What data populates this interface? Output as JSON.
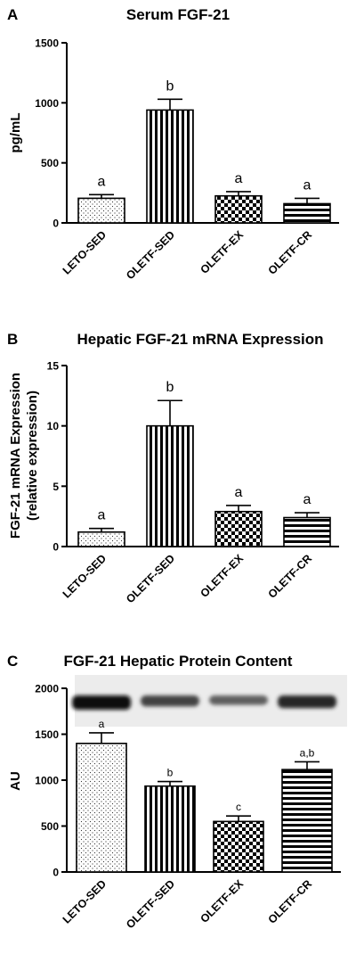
{
  "chart_data": [
    {
      "panel": "A",
      "type": "bar",
      "title": "Serum FGF-21",
      "xlabel": "",
      "ylabel": "pg/mL",
      "ylim": [
        0,
        1500
      ],
      "yticks": [
        0,
        500,
        1000,
        1500
      ],
      "categories": [
        "LETO-SED",
        "OLETF-SED",
        "OLETF-EX",
        "OLETF-CR"
      ],
      "values": [
        205,
        940,
        225,
        160
      ],
      "errors": [
        30,
        90,
        35,
        45
      ],
      "significance": [
        "a",
        "b",
        "a",
        "a"
      ],
      "patterns": [
        "dots",
        "vertical",
        "checker",
        "horizontal"
      ],
      "grid": false
    },
    {
      "panel": "B",
      "type": "bar",
      "title": "Hepatic FGF-21 mRNA Expression",
      "xlabel": "",
      "ylabel": "FGF-21 mRNA Expression",
      "ylabel2": "(relative expression)",
      "ylim": [
        0,
        15
      ],
      "yticks": [
        0,
        5,
        10,
        15
      ],
      "categories": [
        "LETO-SED",
        "OLETF-SED",
        "OLETF-EX",
        "OLETF-CR"
      ],
      "values": [
        1.2,
        10.0,
        2.9,
        2.4
      ],
      "errors": [
        0.3,
        2.1,
        0.5,
        0.4
      ],
      "significance": [
        "a",
        "b",
        "a",
        "a"
      ],
      "patterns": [
        "dots",
        "vertical",
        "checker",
        "horizontal"
      ],
      "grid": false
    },
    {
      "panel": "C",
      "type": "bar",
      "title": "FGF-21 Hepatic Protein Content",
      "xlabel": "",
      "ylabel": "AU",
      "ylim": [
        0,
        2000
      ],
      "yticks": [
        0,
        500,
        1000,
        1500,
        2000
      ],
      "categories": [
        "LETO-SED",
        "OLETF-SED",
        "OLETF-EX",
        "OLETF-CR"
      ],
      "values": [
        1400,
        935,
        550,
        1115
      ],
      "errors": [
        115,
        50,
        60,
        85
      ],
      "significance": [
        "a",
        "b",
        "c",
        "a,b"
      ],
      "patterns": [
        "dots",
        "vertical",
        "checker",
        "horizontal"
      ],
      "blot_intensity": [
        1.0,
        0.7,
        0.55,
        0.85
      ],
      "grid": false
    }
  ]
}
